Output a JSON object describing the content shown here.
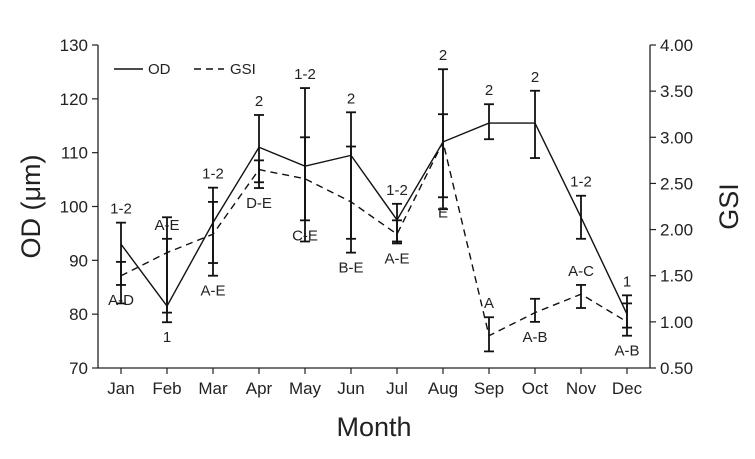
{
  "chart_data": {
    "type": "line",
    "title": "",
    "xlabel": "Month",
    "ylabel_left": "OD (μm)",
    "ylabel_right": "GSI",
    "categories": [
      "Jan",
      "Feb",
      "Mar",
      "Apr",
      "May",
      "Jun",
      "Jul",
      "Aug",
      "Sep",
      "Oct",
      "Nov",
      "Dec"
    ],
    "ylim_left": [
      70,
      130
    ],
    "yticks_left": [
      "70",
      "80",
      "90",
      "100",
      "110",
      "120",
      "130"
    ],
    "ylim_right": [
      0.5,
      4.0
    ],
    "yticks_right": [
      "0.50",
      "1.00",
      "1.50",
      "2.00",
      "2.50",
      "3.00",
      "3.50",
      "4.00"
    ],
    "legend_position": "top-left",
    "series": [
      {
        "name": "OD",
        "axis": "left",
        "style": "solid",
        "values": [
          93,
          81.5,
          97,
          111,
          107.5,
          109.5,
          97.5,
          112,
          115.5,
          115.5,
          98,
          80
        ],
        "err_low": [
          82,
          78.5,
          89.5,
          104.5,
          93.5,
          94,
          93.5,
          99.5,
          112.5,
          109,
          94,
          77.5
        ],
        "err_high": [
          97,
          98,
          103.5,
          117,
          122,
          117.5,
          100.5,
          125.5,
          119,
          121.5,
          102,
          83.5
        ],
        "labels": [
          "1-2",
          "1",
          "1-2",
          "2",
          "1-2",
          "2",
          "1-2",
          "2",
          "2",
          "2",
          "1-2",
          "1"
        ],
        "label_pos": [
          "above",
          "below",
          "above",
          "above",
          "above",
          "above",
          "above",
          "above",
          "above",
          "above",
          "above",
          "above"
        ]
      },
      {
        "name": "GSI",
        "axis": "right",
        "style": "dashed",
        "values": [
          1.5,
          1.75,
          1.95,
          2.65,
          2.55,
          2.3,
          1.95,
          2.95,
          0.85,
          1.1,
          1.3,
          1.0
        ],
        "err_low": [
          1.4,
          1.1,
          1.5,
          2.45,
          2.1,
          1.75,
          1.85,
          2.35,
          0.68,
          1.0,
          1.15,
          0.85
        ],
        "err_high": [
          1.65,
          1.9,
          2.3,
          2.75,
          3.0,
          2.9,
          2.1,
          3.25,
          1.05,
          1.25,
          1.4,
          1.2
        ],
        "labels": [
          "A-D",
          "A-E",
          "A-E",
          "D-E",
          "C-E",
          "B-E",
          "A-E",
          "E",
          "A",
          "A-B",
          "A-C",
          "A-B"
        ],
        "label_pos": [
          "below",
          "above",
          "below",
          "below",
          "below",
          "below",
          "below",
          "below",
          "above",
          "below",
          "above",
          "below"
        ]
      }
    ]
  }
}
